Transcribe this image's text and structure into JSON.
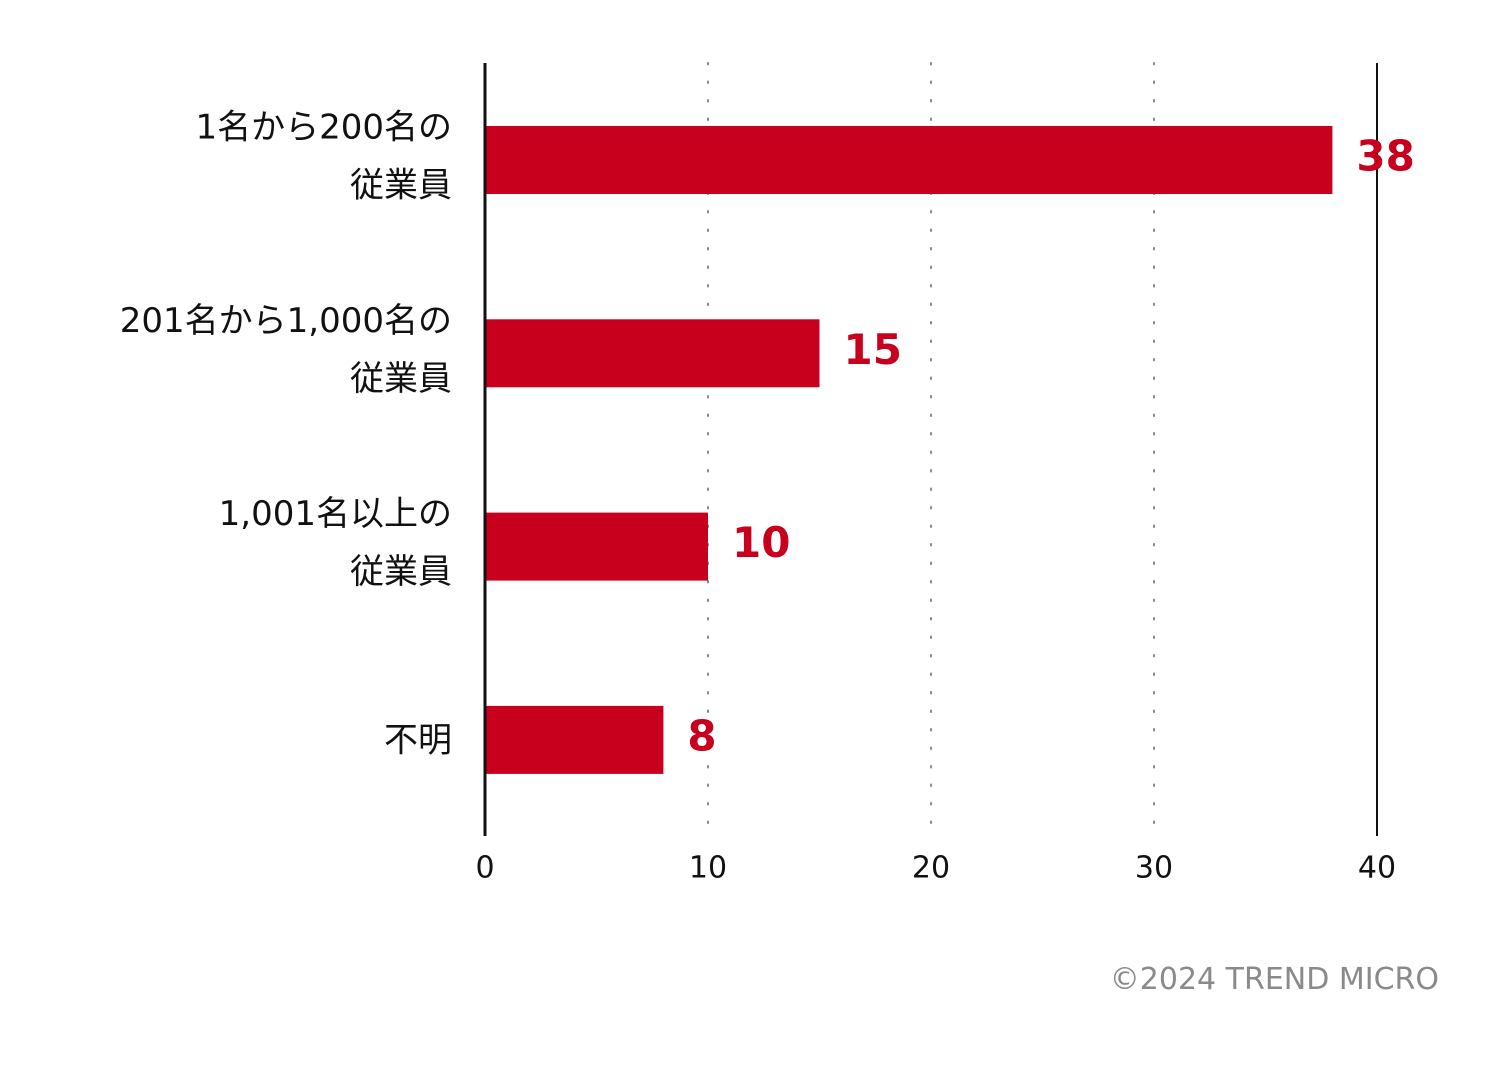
{
  "chart_data": {
    "type": "bar",
    "orientation": "horizontal",
    "categories": [
      [
        "1名から200名の",
        "従業員"
      ],
      [
        "201名から1,000名の",
        "従業員"
      ],
      [
        "1,001名以上の",
        "従業員"
      ],
      [
        "不明"
      ]
    ],
    "values": [
      38,
      15,
      10,
      8
    ],
    "value_labels": [
      "38",
      "15",
      "10",
      "8"
    ],
    "xlim": [
      0,
      40
    ],
    "xticks": [
      0,
      10,
      20,
      30,
      40
    ],
    "tick_labels": [
      "0",
      "10",
      "20",
      "30",
      "40"
    ],
    "gridlines": "dotted vertical",
    "colors": {
      "bar": "#c8001e",
      "value_text": "#c8001e",
      "axis": "#111111",
      "grid": "#888888"
    }
  },
  "copyright": "©2024 TREND MICRO"
}
